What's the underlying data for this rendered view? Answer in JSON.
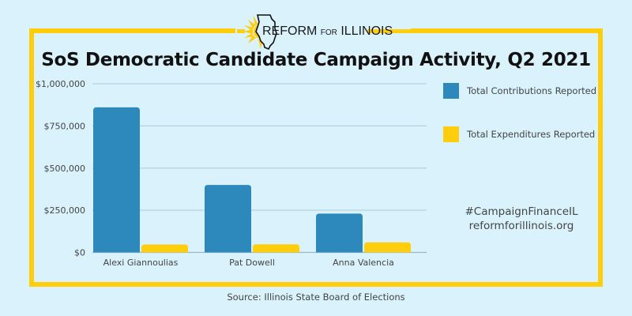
{
  "logo": {
    "text_main_1": "REFORM",
    "text_small": "FOR",
    "text_main_2": "ILLINOIS"
  },
  "legend": {
    "contributions": "Total Contributions Reported",
    "expenditures": "Total Expenditures Reported"
  },
  "footer": {
    "hashtag": "#CampaignFinanceIL",
    "website": "reformforillinois.org",
    "source": "Source: Illinois State Board of Elections"
  },
  "colors": {
    "contributions": "#2d89bb",
    "expenditures": "#fecd0c",
    "frame": "#fecd0c",
    "grid": "#b6d3df"
  },
  "chart_data": {
    "type": "bar",
    "title": "SoS Democratic Candidate Campaign Activity, Q2 2021",
    "xlabel": "",
    "ylabel": "",
    "categories": [
      "Alexi Giannoulias",
      "Pat Dowell",
      "Anna Valencia"
    ],
    "series": [
      {
        "name": "Total Contributions Reported",
        "values": [
          860000,
          400000,
          230000
        ]
      },
      {
        "name": "Total Expenditures Reported",
        "values": [
          47000,
          48000,
          60000
        ]
      }
    ],
    "ylim": [
      0,
      1000000
    ],
    "yticks": [
      0,
      250000,
      500000,
      750000,
      1000000
    ],
    "ytick_labels": [
      "$0",
      "$250,000",
      "$500,000",
      "$750,000",
      "$1,000,000"
    ],
    "grid": true,
    "legend_position": "right"
  }
}
